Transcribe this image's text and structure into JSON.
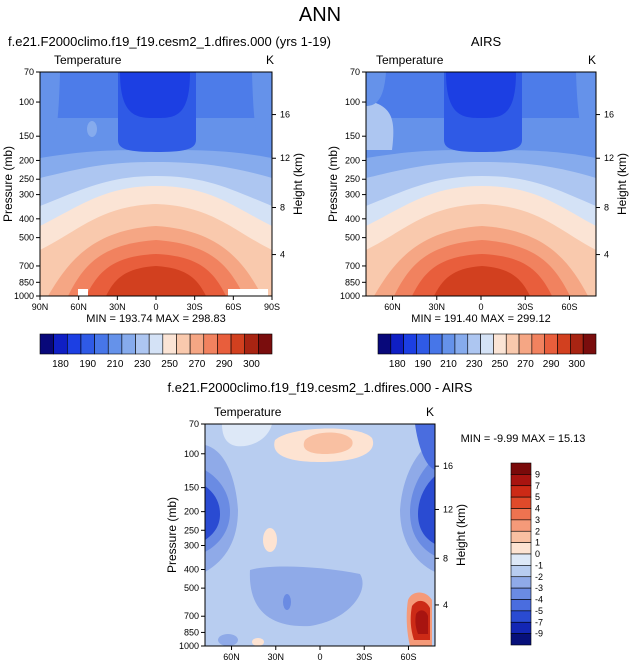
{
  "chart_data": {
    "type": "contour",
    "title": "ANN",
    "pressure_levels": [
      70,
      100,
      150,
      200,
      250,
      300,
      400,
      500,
      700,
      850,
      1000
    ],
    "ylabel": "Pressure (mb)",
    "y2label": "Height (km)",
    "height_ticks": [
      16,
      12,
      8,
      4
    ],
    "panels": [
      {
        "id": "model",
        "title": "f.e21.F2000climo.f19_f19.cesm2_1.dfires.000 (yrs 1-19)",
        "left_label": "Temperature",
        "right_label": "K",
        "x_ticks": [
          "90N",
          "60N",
          "30N",
          "0",
          "30S",
          "60S",
          "90S"
        ],
        "stats": "MIN = 193.74   MAX = 298.83",
        "colorbar_labels": [
          "180",
          "190",
          "210",
          "230",
          "250",
          "270",
          "290",
          "300"
        ]
      },
      {
        "id": "obs",
        "title": "AIRS",
        "left_label": "Temperature",
        "right_label": "K",
        "x_ticks": [
          "60N",
          "30N",
          "0",
          "30S",
          "60S"
        ],
        "stats": "MIN = 191.40   MAX = 299.12",
        "colorbar_labels": [
          "180",
          "190",
          "210",
          "230",
          "250",
          "270",
          "290",
          "300"
        ]
      },
      {
        "id": "diff",
        "title": "f.e21.F2000climo.f19_f19.cesm2_1.dfires.000 - AIRS",
        "left_label": "Temperature",
        "right_label": "K",
        "x_ticks": [
          "60N",
          "30N",
          "0",
          "30S",
          "60S"
        ],
        "stats": "MIN = -9.99   MAX = 15.13",
        "colorbar_labels": [
          "9",
          "7",
          "5",
          "4",
          "3",
          "2",
          "1",
          "0",
          "-1",
          "-2",
          "-3",
          "-4",
          "-5",
          "-7",
          "-9"
        ]
      }
    ],
    "temperature_palette": [
      "#08087a",
      "#0f1fc4",
      "#1c3fe3",
      "#2f5ae6",
      "#4776e8",
      "#6592ea",
      "#86abed",
      "#adc6f1",
      "#d4e2f6",
      "#fbe4d5",
      "#f9c9ad",
      "#f5a684",
      "#f1825f",
      "#e85e3c",
      "#d2401f",
      "#a82412",
      "#7a0d0d"
    ],
    "difference_palette": [
      "#7a0a0a",
      "#a81410",
      "#cc2a16",
      "#e04a2a",
      "#ee7350",
      "#f59a79",
      "#f9c0a2",
      "#fde3d2",
      "#dde8f7",
      "#b8cdf0",
      "#8faae8",
      "#6a8be3",
      "#4a6ddf",
      "#2a4bd2",
      "#1326b4",
      "#07107a"
    ]
  }
}
